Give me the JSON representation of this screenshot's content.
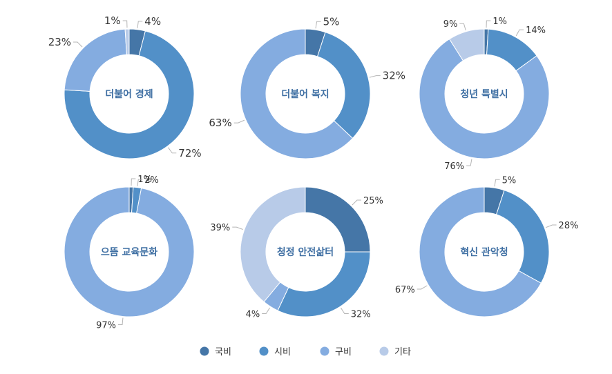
{
  "colors": {
    "national": "#4576a7",
    "city": "#5290c8",
    "district": "#84ace0",
    "other": "#b8cbe8"
  },
  "legend": [
    {
      "label": "국비",
      "color": "#4576a7"
    },
    {
      "label": "시비",
      "color": "#5290c8"
    },
    {
      "label": "구비",
      "color": "#84ace0"
    },
    {
      "label": "기타",
      "color": "#b8cbe8"
    }
  ],
  "chart_data": [
    {
      "type": "pie",
      "subtype": "donut",
      "title": "더불어 경제",
      "categories": [
        "국비",
        "시비",
        "구비",
        "기타"
      ],
      "values": [
        4,
        72,
        23,
        1
      ],
      "labels": [
        "4%",
        "72%",
        "23%",
        "1%"
      ]
    },
    {
      "type": "pie",
      "subtype": "donut",
      "title": "더불어 복지",
      "categories": [
        "국비",
        "시비",
        "구비"
      ],
      "values": [
        5,
        32,
        63
      ],
      "labels": [
        "5%",
        "32%",
        "63%"
      ]
    },
    {
      "type": "pie",
      "subtype": "donut",
      "title": "청년 특별시",
      "categories": [
        "국비",
        "시비",
        "구비",
        "기타"
      ],
      "values": [
        1,
        14,
        76,
        9
      ],
      "labels": [
        "1%",
        "14%",
        "76%",
        "9%"
      ]
    },
    {
      "type": "pie",
      "subtype": "donut",
      "title": "으뜸 교육문화",
      "categories": [
        "국비",
        "시비",
        "구비"
      ],
      "values": [
        1,
        2,
        97
      ],
      "labels": [
        "1%",
        "2%",
        "97%"
      ]
    },
    {
      "type": "pie",
      "subtype": "donut",
      "title": "청정 안전삶터",
      "categories": [
        "국비",
        "시비",
        "구비",
        "기타"
      ],
      "values": [
        25,
        32,
        4,
        39
      ],
      "labels": [
        "25%",
        "32%",
        "4%",
        "39%"
      ]
    },
    {
      "type": "pie",
      "subtype": "donut",
      "title": "혁신 관악청",
      "categories": [
        "국비",
        "시비",
        "구비"
      ],
      "values": [
        5,
        28,
        67
      ],
      "labels": [
        "5%",
        "28%",
        "67%"
      ]
    }
  ]
}
